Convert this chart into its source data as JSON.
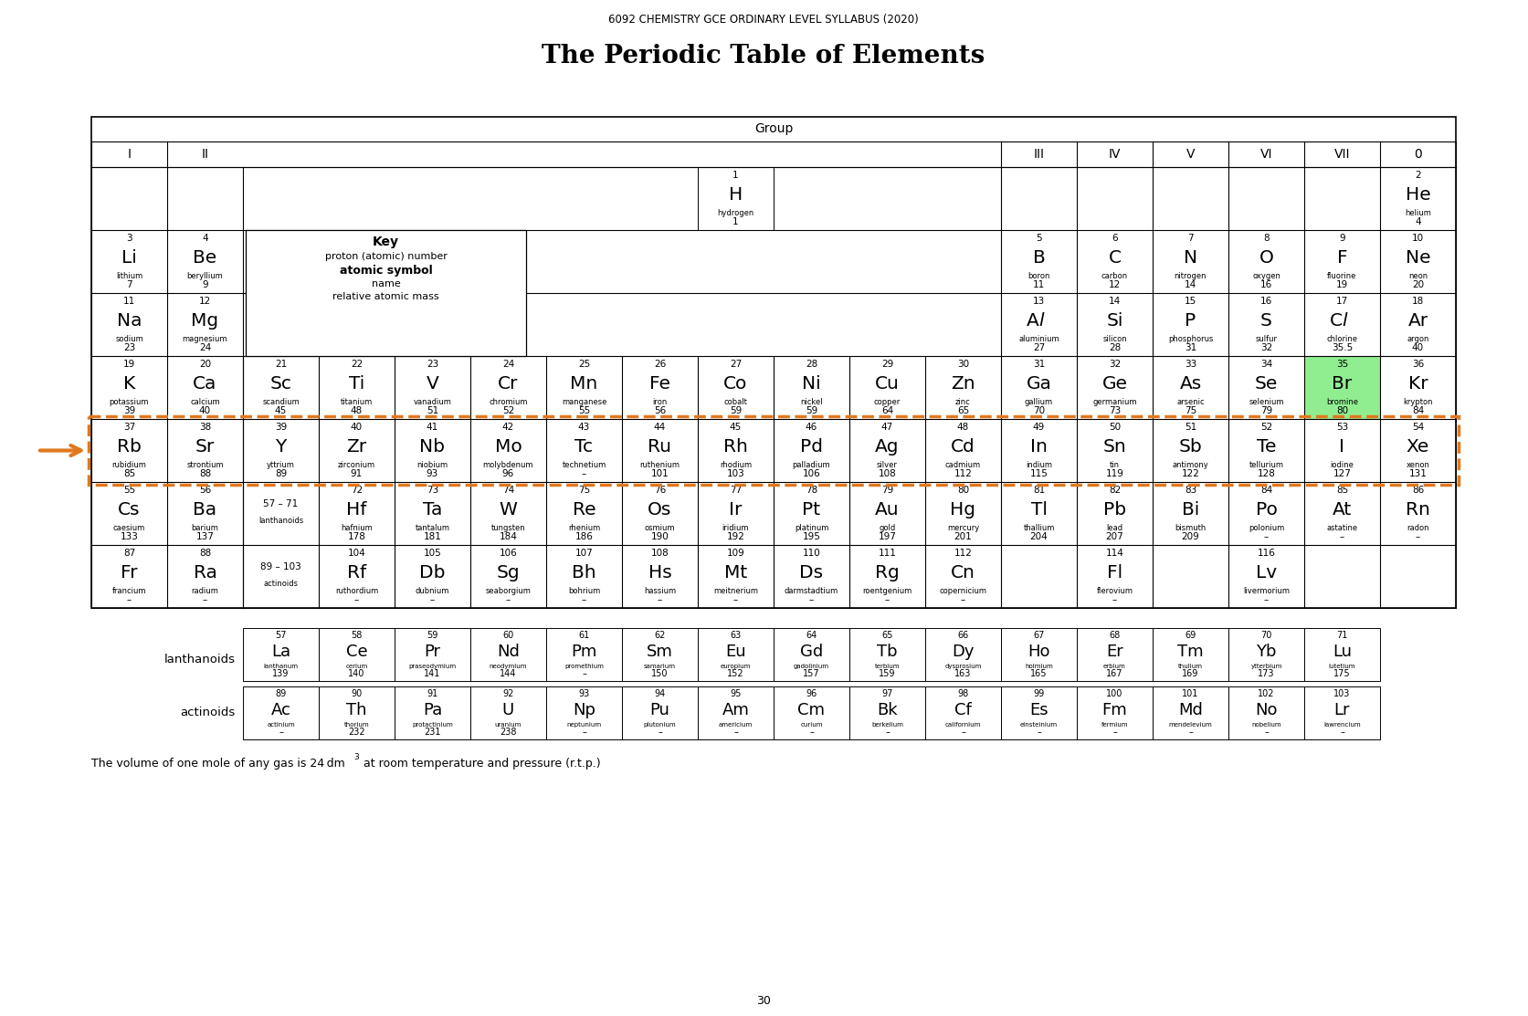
{
  "subtitle": "6092 CHEMISTRY GCE ORDINARY LEVEL SYLLABUS (2020)",
  "title": "The Periodic Table of Elements",
  "footer1": "The volume of one mole of any gas is 24 dm",
  "footer_sup": "3",
  "footer2": " at room temperature and pressure (r.t.p.)",
  "page_num": "30",
  "highlight_color": "#90EE90",
  "orange_color": "#E07820",
  "elements": [
    {
      "num": "1",
      "sym": "H",
      "name": "hydrogen",
      "mass": "1",
      "col": 9,
      "row": 1
    },
    {
      "num": "2",
      "sym": "He",
      "name": "helium",
      "mass": "4",
      "col": 18,
      "row": 1
    },
    {
      "num": "3",
      "sym": "Li",
      "name": "lithium",
      "mass": "7",
      "col": 1,
      "row": 2
    },
    {
      "num": "4",
      "sym": "Be",
      "name": "beryllium",
      "mass": "9",
      "col": 2,
      "row": 2
    },
    {
      "num": "5",
      "sym": "B",
      "name": "boron",
      "mass": "11",
      "col": 13,
      "row": 2
    },
    {
      "num": "6",
      "sym": "C",
      "name": "carbon",
      "mass": "12",
      "col": 14,
      "row": 2
    },
    {
      "num": "7",
      "sym": "N",
      "name": "nitrogen",
      "mass": "14",
      "col": 15,
      "row": 2
    },
    {
      "num": "8",
      "sym": "O",
      "name": "oxygen",
      "mass": "16",
      "col": 16,
      "row": 2
    },
    {
      "num": "9",
      "sym": "F",
      "name": "fluorine",
      "mass": "19",
      "col": 17,
      "row": 2
    },
    {
      "num": "10",
      "sym": "Ne",
      "name": "neon",
      "mass": "20",
      "col": 18,
      "row": 2
    },
    {
      "num": "11",
      "sym": "Na",
      "name": "sodium",
      "mass": "23",
      "col": 1,
      "row": 3
    },
    {
      "num": "12",
      "sym": "Mg",
      "name": "magnesium",
      "mass": "24",
      "col": 2,
      "row": 3
    },
    {
      "num": "13",
      "sym": "Al",
      "name": "aluminium",
      "mass": "27",
      "col": 13,
      "row": 3,
      "al": true
    },
    {
      "num": "14",
      "sym": "Si",
      "name": "silicon",
      "mass": "28",
      "col": 14,
      "row": 3
    },
    {
      "num": "15",
      "sym": "P",
      "name": "phosphorus",
      "mass": "31",
      "col": 15,
      "row": 3
    },
    {
      "num": "16",
      "sym": "S",
      "name": "sulfur",
      "mass": "32",
      "col": 16,
      "row": 3
    },
    {
      "num": "17",
      "sym": "Cl",
      "name": "chlorine",
      "mass": "35.5",
      "col": 17,
      "row": 3,
      "cl": true
    },
    {
      "num": "18",
      "sym": "Ar",
      "name": "argon",
      "mass": "40",
      "col": 18,
      "row": 3
    },
    {
      "num": "19",
      "sym": "K",
      "name": "potassium",
      "mass": "39",
      "col": 1,
      "row": 4
    },
    {
      "num": "20",
      "sym": "Ca",
      "name": "calcium",
      "mass": "40",
      "col": 2,
      "row": 4
    },
    {
      "num": "21",
      "sym": "Sc",
      "name": "scandium",
      "mass": "45",
      "col": 3,
      "row": 4
    },
    {
      "num": "22",
      "sym": "Ti",
      "name": "titanium",
      "mass": "48",
      "col": 4,
      "row": 4
    },
    {
      "num": "23",
      "sym": "V",
      "name": "vanadium",
      "mass": "51",
      "col": 5,
      "row": 4
    },
    {
      "num": "24",
      "sym": "Cr",
      "name": "chromium",
      "mass": "52",
      "col": 6,
      "row": 4
    },
    {
      "num": "25",
      "sym": "Mn",
      "name": "manganese",
      "mass": "55",
      "col": 7,
      "row": 4
    },
    {
      "num": "26",
      "sym": "Fe",
      "name": "iron",
      "mass": "56",
      "col": 8,
      "row": 4
    },
    {
      "num": "27",
      "sym": "Co",
      "name": "cobalt",
      "mass": "59",
      "col": 9,
      "row": 4
    },
    {
      "num": "28",
      "sym": "Ni",
      "name": "nickel",
      "mass": "59",
      "col": 10,
      "row": 4
    },
    {
      "num": "29",
      "sym": "Cu",
      "name": "copper",
      "mass": "64",
      "col": 11,
      "row": 4
    },
    {
      "num": "30",
      "sym": "Zn",
      "name": "zinc",
      "mass": "65",
      "col": 12,
      "row": 4
    },
    {
      "num": "31",
      "sym": "Ga",
      "name": "gallium",
      "mass": "70",
      "col": 13,
      "row": 4
    },
    {
      "num": "32",
      "sym": "Ge",
      "name": "germanium",
      "mass": "73",
      "col": 14,
      "row": 4
    },
    {
      "num": "33",
      "sym": "As",
      "name": "arsenic",
      "mass": "75",
      "col": 15,
      "row": 4
    },
    {
      "num": "34",
      "sym": "Se",
      "name": "selenium",
      "mass": "79",
      "col": 16,
      "row": 4
    },
    {
      "num": "35",
      "sym": "Br",
      "name": "bromine",
      "mass": "80",
      "col": 17,
      "row": 4,
      "hl": true
    },
    {
      "num": "36",
      "sym": "Kr",
      "name": "krypton",
      "mass": "84",
      "col": 18,
      "row": 4
    },
    {
      "num": "37",
      "sym": "Rb",
      "name": "rubidium",
      "mass": "85",
      "col": 1,
      "row": 5
    },
    {
      "num": "38",
      "sym": "Sr",
      "name": "strontium",
      "mass": "88",
      "col": 2,
      "row": 5
    },
    {
      "num": "39",
      "sym": "Y",
      "name": "yttrium",
      "mass": "89",
      "col": 3,
      "row": 5
    },
    {
      "num": "40",
      "sym": "Zr",
      "name": "zirconium",
      "mass": "91",
      "col": 4,
      "row": 5
    },
    {
      "num": "41",
      "sym": "Nb",
      "name": "niobium",
      "mass": "93",
      "col": 5,
      "row": 5
    },
    {
      "num": "42",
      "sym": "Mo",
      "name": "molybdenum",
      "mass": "96",
      "col": 6,
      "row": 5
    },
    {
      "num": "43",
      "sym": "Tc",
      "name": "technetium",
      "mass": "–",
      "col": 7,
      "row": 5
    },
    {
      "num": "44",
      "sym": "Ru",
      "name": "ruthenium",
      "mass": "101",
      "col": 8,
      "row": 5
    },
    {
      "num": "45",
      "sym": "Rh",
      "name": "rhodium",
      "mass": "103",
      "col": 9,
      "row": 5
    },
    {
      "num": "46",
      "sym": "Pd",
      "name": "palladium",
      "mass": "106",
      "col": 10,
      "row": 5
    },
    {
      "num": "47",
      "sym": "Ag",
      "name": "silver",
      "mass": "108",
      "col": 11,
      "row": 5
    },
    {
      "num": "48",
      "sym": "Cd",
      "name": "cadmium",
      "mass": "112",
      "col": 12,
      "row": 5
    },
    {
      "num": "49",
      "sym": "In",
      "name": "indium",
      "mass": "115",
      "col": 13,
      "row": 5
    },
    {
      "num": "50",
      "sym": "Sn",
      "name": "tin",
      "mass": "119",
      "col": 14,
      "row": 5
    },
    {
      "num": "51",
      "sym": "Sb",
      "name": "antimony",
      "mass": "122",
      "col": 15,
      "row": 5
    },
    {
      "num": "52",
      "sym": "Te",
      "name": "tellurium",
      "mass": "128",
      "col": 16,
      "row": 5
    },
    {
      "num": "53",
      "sym": "I",
      "name": "iodine",
      "mass": "127",
      "col": 17,
      "row": 5
    },
    {
      "num": "54",
      "sym": "Xe",
      "name": "xenon",
      "mass": "131",
      "col": 18,
      "row": 5
    },
    {
      "num": "55",
      "sym": "Cs",
      "name": "caesium",
      "mass": "133",
      "col": 1,
      "row": 6
    },
    {
      "num": "56",
      "sym": "Ba",
      "name": "barium",
      "mass": "137",
      "col": 2,
      "row": 6
    },
    {
      "num": "72",
      "sym": "Hf",
      "name": "hafnium",
      "mass": "178",
      "col": 4,
      "row": 6
    },
    {
      "num": "73",
      "sym": "Ta",
      "name": "tantalum",
      "mass": "181",
      "col": 5,
      "row": 6
    },
    {
      "num": "74",
      "sym": "W",
      "name": "tungsten",
      "mass": "184",
      "col": 6,
      "row": 6
    },
    {
      "num": "75",
      "sym": "Re",
      "name": "rhenium",
      "mass": "186",
      "col": 7,
      "row": 6
    },
    {
      "num": "76",
      "sym": "Os",
      "name": "osmium",
      "mass": "190",
      "col": 8,
      "row": 6
    },
    {
      "num": "77",
      "sym": "Ir",
      "name": "iridium",
      "mass": "192",
      "col": 9,
      "row": 6
    },
    {
      "num": "78",
      "sym": "Pt",
      "name": "platinum",
      "mass": "195",
      "col": 10,
      "row": 6
    },
    {
      "num": "79",
      "sym": "Au",
      "name": "gold",
      "mass": "197",
      "col": 11,
      "row": 6
    },
    {
      "num": "80",
      "sym": "Hg",
      "name": "mercury",
      "mass": "201",
      "col": 12,
      "row": 6
    },
    {
      "num": "81",
      "sym": "Tl",
      "name": "thallium",
      "mass": "204",
      "col": 13,
      "row": 6
    },
    {
      "num": "82",
      "sym": "Pb",
      "name": "lead",
      "mass": "207",
      "col": 14,
      "row": 6
    },
    {
      "num": "83",
      "sym": "Bi",
      "name": "bismuth",
      "mass": "209",
      "col": 15,
      "row": 6
    },
    {
      "num": "84",
      "sym": "Po",
      "name": "polonium",
      "mass": "–",
      "col": 16,
      "row": 6
    },
    {
      "num": "85",
      "sym": "At",
      "name": "astatine",
      "mass": "–",
      "col": 17,
      "row": 6
    },
    {
      "num": "86",
      "sym": "Rn",
      "name": "radon",
      "mass": "–",
      "col": 18,
      "row": 6
    },
    {
      "num": "87",
      "sym": "Fr",
      "name": "francium",
      "mass": "–",
      "col": 1,
      "row": 7
    },
    {
      "num": "88",
      "sym": "Ra",
      "name": "radium",
      "mass": "–",
      "col": 2,
      "row": 7
    },
    {
      "num": "104",
      "sym": "Rf",
      "name": "ruthordium",
      "mass": "–",
      "col": 4,
      "row": 7
    },
    {
      "num": "105",
      "sym": "Db",
      "name": "dubnium",
      "mass": "–",
      "col": 5,
      "row": 7
    },
    {
      "num": "106",
      "sym": "Sg",
      "name": "seaborgium",
      "mass": "–",
      "col": 6,
      "row": 7
    },
    {
      "num": "107",
      "sym": "Bh",
      "name": "bohrium",
      "mass": "–",
      "col": 7,
      "row": 7
    },
    {
      "num": "108",
      "sym": "Hs",
      "name": "hassium",
      "mass": "–",
      "col": 8,
      "row": 7
    },
    {
      "num": "109",
      "sym": "Mt",
      "name": "meitnerium",
      "mass": "–",
      "col": 9,
      "row": 7
    },
    {
      "num": "110",
      "sym": "Ds",
      "name": "darmstadtium",
      "mass": "–",
      "col": 10,
      "row": 7
    },
    {
      "num": "111",
      "sym": "Rg",
      "name": "roentgenium",
      "mass": "–",
      "col": 11,
      "row": 7
    },
    {
      "num": "112",
      "sym": "Cn",
      "name": "copernicium",
      "mass": "–",
      "col": 12,
      "row": 7
    },
    {
      "num": "114",
      "sym": "Fl",
      "name": "flerovium",
      "mass": "–",
      "col": 14,
      "row": 7
    },
    {
      "num": "116",
      "sym": "Lv",
      "name": "livermorium",
      "mass": "–",
      "col": 16,
      "row": 7
    }
  ],
  "lanthanoids": [
    {
      "num": "57",
      "sym": "La",
      "name": "lanthanum",
      "mass": "139"
    },
    {
      "num": "58",
      "sym": "Ce",
      "name": "cerium",
      "mass": "140"
    },
    {
      "num": "59",
      "sym": "Pr",
      "name": "praseodymium",
      "mass": "141"
    },
    {
      "num": "60",
      "sym": "Nd",
      "name": "neodymium",
      "mass": "144"
    },
    {
      "num": "61",
      "sym": "Pm",
      "name": "promethium",
      "mass": "–"
    },
    {
      "num": "62",
      "sym": "Sm",
      "name": "samarium",
      "mass": "150"
    },
    {
      "num": "63",
      "sym": "Eu",
      "name": "europium",
      "mass": "152"
    },
    {
      "num": "64",
      "sym": "Gd",
      "name": "gadolinium",
      "mass": "157"
    },
    {
      "num": "65",
      "sym": "Tb",
      "name": "terbium",
      "mass": "159"
    },
    {
      "num": "66",
      "sym": "Dy",
      "name": "dysprosium",
      "mass": "163"
    },
    {
      "num": "67",
      "sym": "Ho",
      "name": "holmium",
      "mass": "165"
    },
    {
      "num": "68",
      "sym": "Er",
      "name": "erbium",
      "mass": "167"
    },
    {
      "num": "69",
      "sym": "Tm",
      "name": "thulium",
      "mass": "169"
    },
    {
      "num": "70",
      "sym": "Yb",
      "name": "ytterbium",
      "mass": "173"
    },
    {
      "num": "71",
      "sym": "Lu",
      "name": "lutetium",
      "mass": "175"
    }
  ],
  "actinoids": [
    {
      "num": "89",
      "sym": "Ac",
      "name": "actinium",
      "mass": "–"
    },
    {
      "num": "90",
      "sym": "Th",
      "name": "thorium",
      "mass": "232"
    },
    {
      "num": "91",
      "sym": "Pa",
      "name": "protactinium",
      "mass": "231"
    },
    {
      "num": "92",
      "sym": "U",
      "name": "uranium",
      "mass": "238"
    },
    {
      "num": "93",
      "sym": "Np",
      "name": "neptunium",
      "mass": "–"
    },
    {
      "num": "94",
      "sym": "Pu",
      "name": "plutonium",
      "mass": "–"
    },
    {
      "num": "95",
      "sym": "Am",
      "name": "americium",
      "mass": "–"
    },
    {
      "num": "96",
      "sym": "Cm",
      "name": "curium",
      "mass": "–"
    },
    {
      "num": "97",
      "sym": "Bk",
      "name": "berkelium",
      "mass": "–"
    },
    {
      "num": "98",
      "sym": "Cf",
      "name": "californium",
      "mass": "–"
    },
    {
      "num": "99",
      "sym": "Es",
      "name": "einsteinium",
      "mass": "–"
    },
    {
      "num": "100",
      "sym": "Fm",
      "name": "fermium",
      "mass": "–"
    },
    {
      "num": "101",
      "sym": "Md",
      "name": "mendelevium",
      "mass": "–"
    },
    {
      "num": "102",
      "sym": "No",
      "name": "nobelium",
      "mass": "–"
    },
    {
      "num": "103",
      "sym": "Lr",
      "name": "lawrencium",
      "mass": "–"
    }
  ]
}
